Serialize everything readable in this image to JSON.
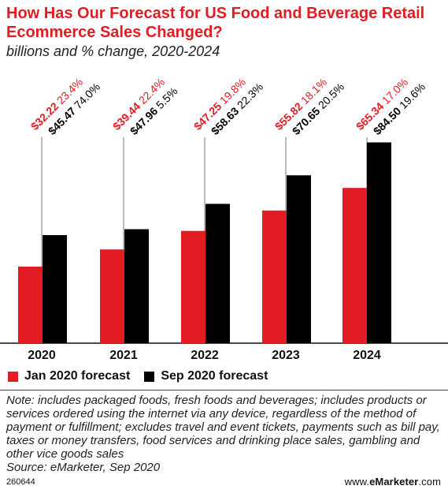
{
  "colors": {
    "jan": "#e31b23",
    "sep": "#000000",
    "text": "#111111",
    "line": "#777777"
  },
  "header": {
    "title": "How Has Our Forecast for US Food and Beverage Retail Ecommerce Sales Changed?",
    "subtitle": "billions and % change, 2020-2024"
  },
  "legend": {
    "jan": "Jan 2020 forecast",
    "sep": "Sep 2020 forecast"
  },
  "note": "Note: includes packaged foods, fresh foods and beverages; includes products or services ordered using the internet via any device, regardless of the method of payment or fulfillment; excludes travel and event tickets, payments such as bill pay, taxes or money transfers, food services and drinking place sales, gambling and other vice goods sales",
  "source": "Source: eMarketer, Sep 2020",
  "footer": {
    "id": "260644",
    "brand_prefix": "www.",
    "brand_bold": "eMarketer",
    "brand_suffix": ".com"
  },
  "chart_data": {
    "type": "bar",
    "title": "How Has Our Forecast for US Food and Beverage Retail Ecommerce Sales Changed?",
    "subtitle": "billions and % change, 2020-2024",
    "categories": [
      "2020",
      "2021",
      "2022",
      "2023",
      "2024"
    ],
    "ylim": [
      0,
      100
    ],
    "series": [
      {
        "name": "Jan 2020 forecast",
        "values": [
          32.22,
          39.44,
          47.25,
          55.82,
          65.34
        ],
        "labels": [
          "$32.22",
          "$39.44",
          "$47.25",
          "$55.82",
          "$65.34"
        ],
        "pct_labels": [
          "23.4%",
          "22.4%",
          "19.8%",
          "18.1%",
          "17.0%"
        ]
      },
      {
        "name": "Sep 2020 forecast",
        "values": [
          45.47,
          47.96,
          58.63,
          70.65,
          84.5
        ],
        "labels": [
          "$45.47",
          "$47.96",
          "$58.63",
          "$70.65",
          "$84.50"
        ],
        "pct_labels": [
          "74.0%",
          "5.5%",
          "22.3%",
          "20.5%",
          "19.6%"
        ]
      }
    ],
    "legend": "bottom-left",
    "grid": false
  }
}
